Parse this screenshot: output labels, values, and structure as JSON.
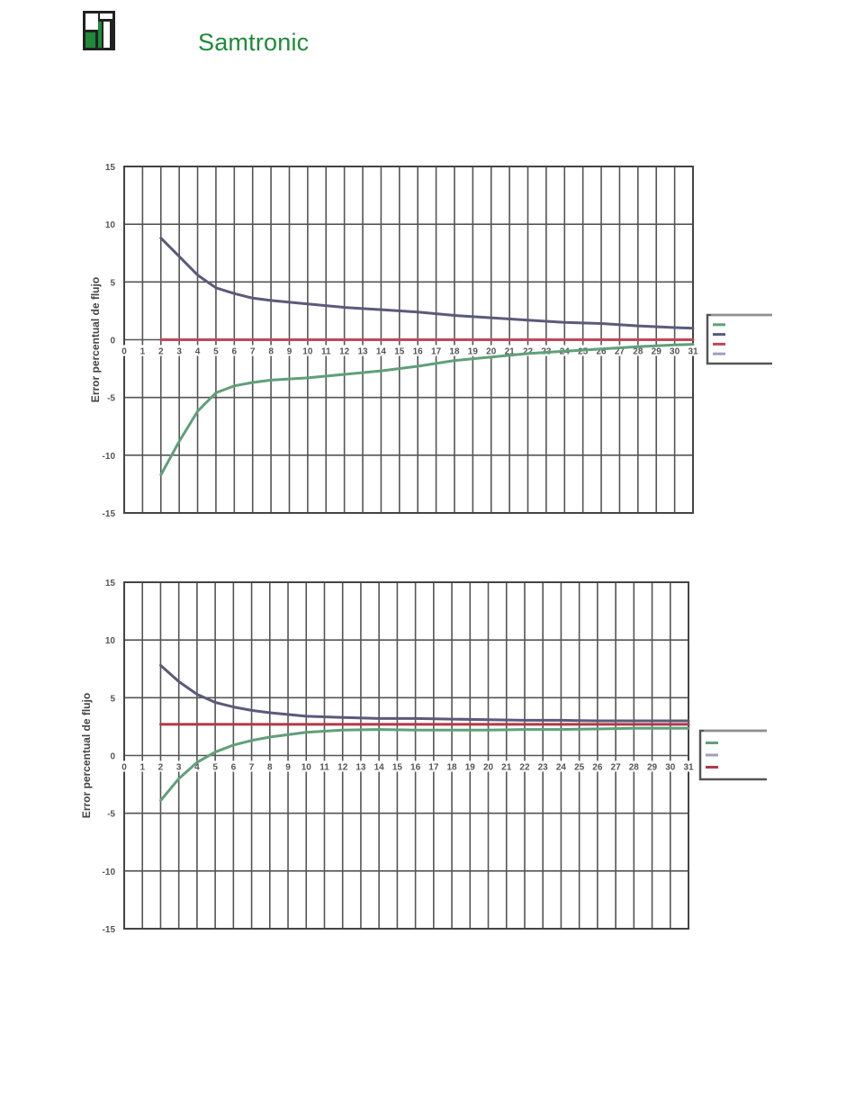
{
  "header": {
    "logo_text": "Samtronic",
    "colors": {
      "logo_green": "#1f8a3a",
      "logo_dark": "#222222"
    }
  },
  "chart_data": [
    {
      "type": "line",
      "ylabel": "Error percentual de flujo",
      "xlabel": "",
      "ylim": [
        -15,
        15
      ],
      "xlim": [
        0,
        31
      ],
      "x_ticks": [
        0,
        1,
        2,
        3,
        4,
        5,
        6,
        7,
        8,
        9,
        10,
        11,
        12,
        13,
        14,
        15,
        16,
        17,
        18,
        19,
        20,
        21,
        22,
        23,
        24,
        25,
        26,
        27,
        28,
        29,
        30,
        31
      ],
      "y_ticks": [
        15,
        10,
        5,
        0,
        -5,
        -10,
        -15
      ],
      "grid": true,
      "legend": "right",
      "series": [
        {
          "color": "#5a5a7a",
          "x": [
            2,
            3,
            4,
            5,
            6,
            7,
            8,
            10,
            12,
            14,
            16,
            18,
            20,
            22,
            24,
            26,
            28,
            30,
            31
          ],
          "values": [
            8.8,
            7.2,
            5.6,
            4.5,
            4.0,
            3.6,
            3.4,
            3.1,
            2.8,
            2.6,
            2.4,
            2.1,
            1.9,
            1.7,
            1.5,
            1.4,
            1.2,
            1.05,
            1.0
          ]
        },
        {
          "color": "#c0475a",
          "x": [
            2,
            31
          ],
          "values": [
            0,
            0
          ]
        },
        {
          "color": "#5fa07a",
          "x": [
            2,
            3,
            4,
            5,
            6,
            7,
            8,
            10,
            12,
            14,
            16,
            18,
            20,
            22,
            24,
            26,
            28,
            30,
            31
          ],
          "values": [
            -11.7,
            -8.8,
            -6.2,
            -4.6,
            -4.0,
            -3.7,
            -3.5,
            -3.3,
            -3.0,
            -2.7,
            -2.3,
            -1.8,
            -1.5,
            -1.2,
            -1.0,
            -0.8,
            -0.6,
            -0.45,
            -0.4
          ]
        }
      ],
      "legend_markers": [
        "#5fa07a",
        "#5a5a7a",
        "#c0475a",
        "#a0a0b8"
      ]
    },
    {
      "type": "line",
      "ylabel": "Error percentual de flujo",
      "xlabel": "",
      "ylim": [
        -15,
        15
      ],
      "xlim": [
        0,
        31
      ],
      "x_ticks": [
        0,
        1,
        2,
        3,
        4,
        5,
        6,
        7,
        8,
        9,
        10,
        11,
        12,
        13,
        14,
        15,
        16,
        17,
        18,
        19,
        20,
        21,
        22,
        23,
        24,
        25,
        26,
        27,
        28,
        29,
        30,
        31
      ],
      "y_ticks": [
        15,
        10,
        5,
        0,
        -5,
        -10,
        -15
      ],
      "grid": true,
      "legend": "right",
      "series": [
        {
          "color": "#5a5a7a",
          "x": [
            2,
            3,
            4,
            5,
            6,
            7,
            8,
            10,
            12,
            14,
            16,
            18,
            20,
            22,
            24,
            26,
            28,
            30,
            31
          ],
          "values": [
            7.8,
            6.4,
            5.3,
            4.6,
            4.2,
            3.9,
            3.7,
            3.4,
            3.3,
            3.2,
            3.2,
            3.15,
            3.1,
            3.05,
            3.05,
            3.0,
            3.0,
            3.0,
            3.0
          ]
        },
        {
          "color": "#b03a48",
          "x": [
            2,
            31
          ],
          "values": [
            2.7,
            2.7
          ]
        },
        {
          "color": "#5fa07a",
          "x": [
            2,
            3,
            4,
            5,
            6,
            7,
            8,
            10,
            12,
            14,
            16,
            18,
            20,
            22,
            24,
            26,
            28,
            30,
            31
          ],
          "values": [
            -3.9,
            -2.0,
            -0.6,
            0.3,
            0.9,
            1.3,
            1.6,
            2.0,
            2.2,
            2.25,
            2.2,
            2.2,
            2.2,
            2.25,
            2.25,
            2.3,
            2.35,
            2.35,
            2.35
          ]
        }
      ],
      "legend_markers": [
        "#5fa07a",
        "#a0a0b8",
        "#b03a48"
      ]
    }
  ]
}
